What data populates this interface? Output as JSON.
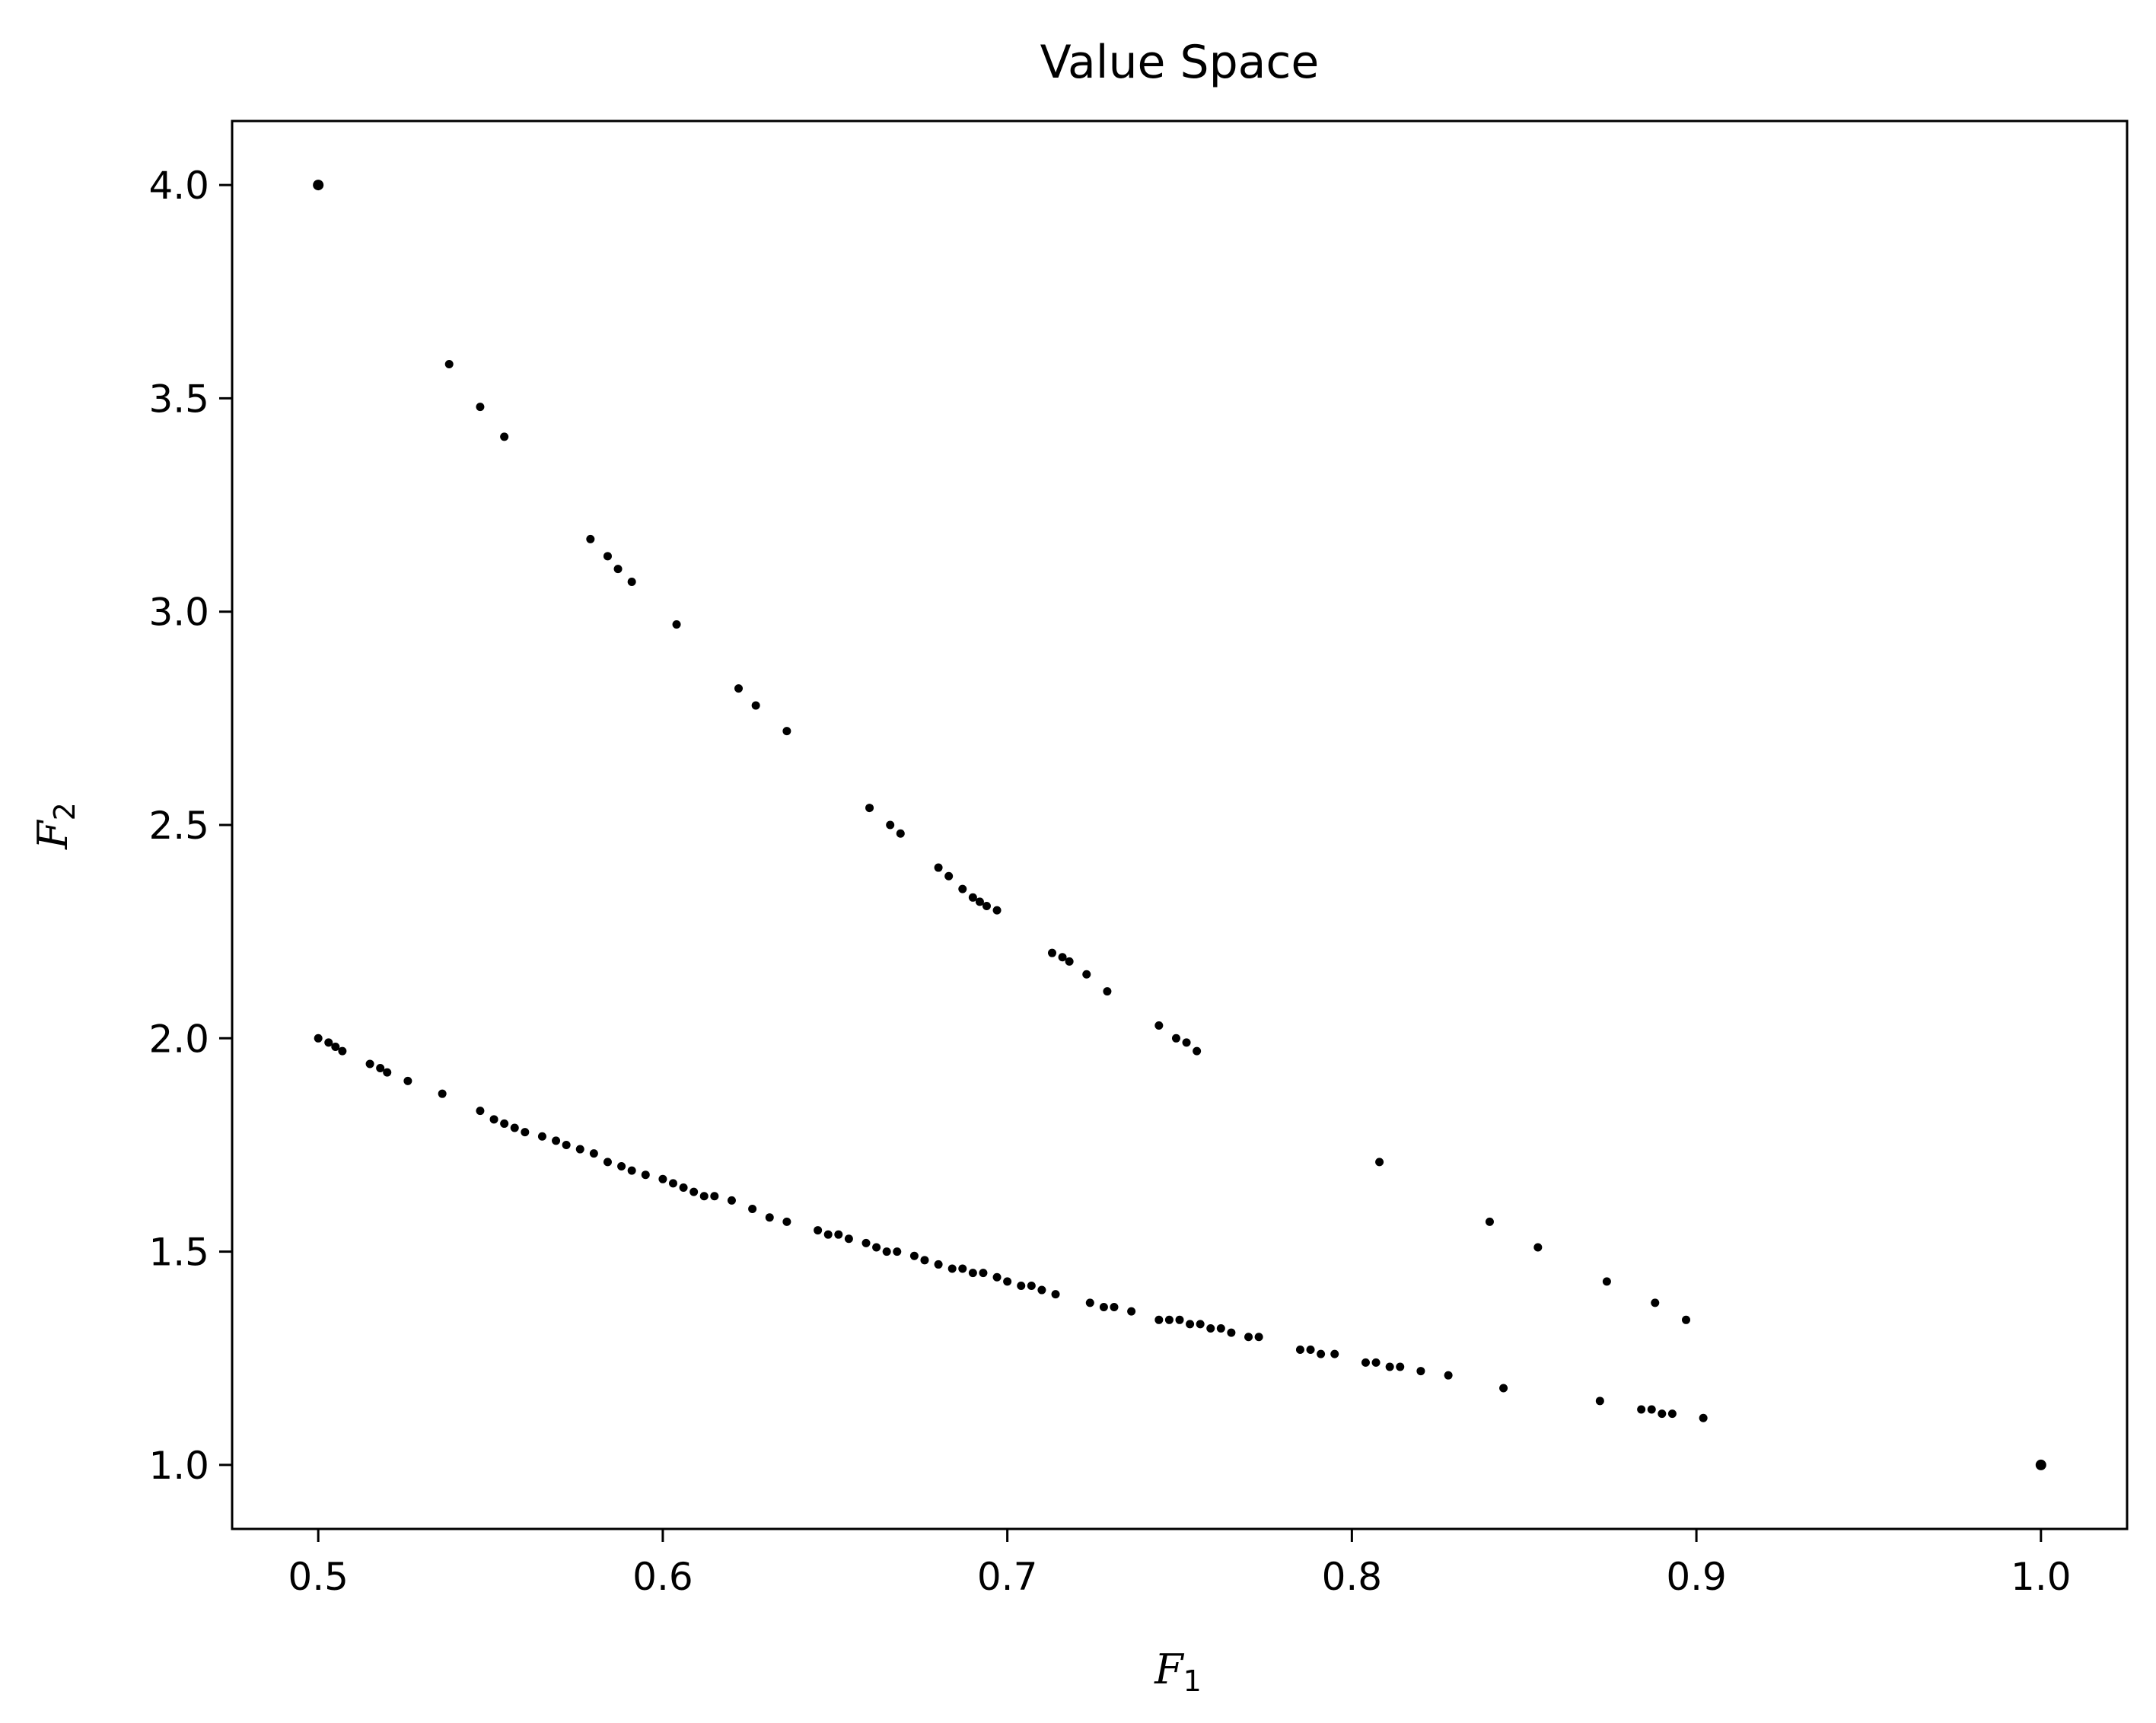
{
  "chart_data": {
    "type": "scatter",
    "title": "Value Space",
    "xlabel": {
      "main": "F",
      "sub": "1"
    },
    "ylabel": {
      "main": "F",
      "sub": "2"
    },
    "xlim": [
      0.475,
      1.025
    ],
    "ylim": [
      0.85,
      4.15
    ],
    "xticks": [
      0.5,
      0.6,
      0.7,
      0.8,
      0.9,
      1.0
    ],
    "xtick_labels": [
      "0.5",
      "0.6",
      "0.7",
      "0.8",
      "0.9",
      "1.0"
    ],
    "yticks": [
      1.0,
      1.5,
      2.0,
      2.5,
      3.0,
      3.5,
      4.0
    ],
    "ytick_labels": [
      "1.0",
      "1.5",
      "2.0",
      "2.5",
      "3.0",
      "3.5",
      "4.0"
    ],
    "grid": false,
    "marker_color": "#000000",
    "series": [
      {
        "points": [
          [
            0.5,
            4.0
          ],
          [
            1.0,
            1.0
          ],
          [
            0.538,
            3.58
          ],
          [
            0.547,
            3.48
          ],
          [
            0.554,
            3.41
          ],
          [
            0.579,
            3.17
          ],
          [
            0.584,
            3.13
          ],
          [
            0.587,
            3.1
          ],
          [
            0.591,
            3.07
          ],
          [
            0.604,
            2.97
          ],
          [
            0.622,
            2.82
          ],
          [
            0.627,
            2.78
          ],
          [
            0.636,
            2.72
          ],
          [
            0.66,
            2.54
          ],
          [
            0.666,
            2.5
          ],
          [
            0.669,
            2.48
          ],
          [
            0.68,
            2.4
          ],
          [
            0.683,
            2.38
          ],
          [
            0.687,
            2.35
          ],
          [
            0.69,
            2.33
          ],
          [
            0.692,
            2.32
          ],
          [
            0.694,
            2.31
          ],
          [
            0.697,
            2.3
          ],
          [
            0.713,
            2.2
          ],
          [
            0.716,
            2.19
          ],
          [
            0.718,
            2.18
          ],
          [
            0.723,
            2.15
          ],
          [
            0.729,
            2.11
          ],
          [
            0.744,
            2.03
          ],
          [
            0.749,
            2.0
          ],
          [
            0.752,
            1.99
          ],
          [
            0.755,
            1.97
          ],
          [
            0.808,
            1.71
          ],
          [
            0.84,
            1.57
          ],
          [
            0.854,
            1.51
          ],
          [
            0.874,
            1.43
          ],
          [
            0.888,
            1.38
          ],
          [
            0.897,
            1.34
          ],
          [
            0.5,
            2.0
          ],
          [
            0.503,
            1.99
          ],
          [
            0.505,
            1.98
          ],
          [
            0.507,
            1.97
          ],
          [
            0.515,
            1.94
          ],
          [
            0.518,
            1.93
          ],
          [
            0.52,
            1.92
          ],
          [
            0.526,
            1.9
          ],
          [
            0.536,
            1.87
          ],
          [
            0.547,
            1.83
          ],
          [
            0.551,
            1.81
          ],
          [
            0.554,
            1.8
          ],
          [
            0.557,
            1.79
          ],
          [
            0.56,
            1.78
          ],
          [
            0.565,
            1.77
          ],
          [
            0.569,
            1.76
          ],
          [
            0.572,
            1.75
          ],
          [
            0.576,
            1.74
          ],
          [
            0.58,
            1.73
          ],
          [
            0.584,
            1.71
          ],
          [
            0.588,
            1.7
          ],
          [
            0.591,
            1.69
          ],
          [
            0.595,
            1.68
          ],
          [
            0.6,
            1.67
          ],
          [
            0.603,
            1.66
          ],
          [
            0.606,
            1.65
          ],
          [
            0.609,
            1.64
          ],
          [
            0.612,
            1.63
          ],
          [
            0.615,
            1.63
          ],
          [
            0.62,
            1.62
          ],
          [
            0.626,
            1.6
          ],
          [
            0.631,
            1.58
          ],
          [
            0.636,
            1.57
          ],
          [
            0.645,
            1.55
          ],
          [
            0.648,
            1.54
          ],
          [
            0.651,
            1.54
          ],
          [
            0.654,
            1.53
          ],
          [
            0.659,
            1.52
          ],
          [
            0.662,
            1.51
          ],
          [
            0.665,
            1.5
          ],
          [
            0.668,
            1.5
          ],
          [
            0.673,
            1.49
          ],
          [
            0.676,
            1.48
          ],
          [
            0.68,
            1.47
          ],
          [
            0.684,
            1.46
          ],
          [
            0.687,
            1.46
          ],
          [
            0.69,
            1.45
          ],
          [
            0.693,
            1.45
          ],
          [
            0.697,
            1.44
          ],
          [
            0.7,
            1.43
          ],
          [
            0.704,
            1.42
          ],
          [
            0.707,
            1.42
          ],
          [
            0.71,
            1.41
          ],
          [
            0.714,
            1.4
          ],
          [
            0.724,
            1.38
          ],
          [
            0.728,
            1.37
          ],
          [
            0.731,
            1.37
          ],
          [
            0.736,
            1.36
          ],
          [
            0.744,
            1.34
          ],
          [
            0.747,
            1.34
          ],
          [
            0.75,
            1.34
          ],
          [
            0.753,
            1.33
          ],
          [
            0.756,
            1.33
          ],
          [
            0.759,
            1.32
          ],
          [
            0.762,
            1.32
          ],
          [
            0.765,
            1.31
          ],
          [
            0.77,
            1.3
          ],
          [
            0.773,
            1.3
          ],
          [
            0.785,
            1.27
          ],
          [
            0.788,
            1.27
          ],
          [
            0.791,
            1.26
          ],
          [
            0.795,
            1.26
          ],
          [
            0.804,
            1.24
          ],
          [
            0.807,
            1.24
          ],
          [
            0.811,
            1.23
          ],
          [
            0.814,
            1.23
          ],
          [
            0.82,
            1.22
          ],
          [
            0.828,
            1.21
          ],
          [
            0.844,
            1.18
          ],
          [
            0.872,
            1.15
          ],
          [
            0.884,
            1.13
          ],
          [
            0.887,
            1.13
          ],
          [
            0.89,
            1.12
          ],
          [
            0.893,
            1.12
          ],
          [
            0.902,
            1.11
          ]
        ]
      }
    ]
  }
}
